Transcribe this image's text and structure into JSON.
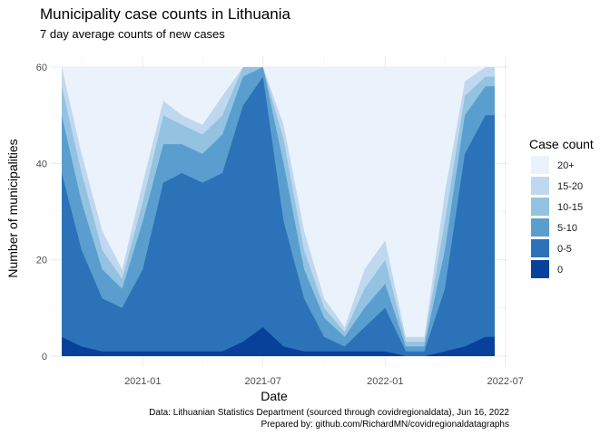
{
  "chart_data": {
    "type": "area",
    "title": "Municipality case counts in Lithuania",
    "subtitle": "7 day average counts of new cases",
    "xlabel": "Date",
    "ylabel": "Number of municipalities",
    "ylim": [
      0,
      62
    ],
    "y_ticks": [
      0,
      20,
      40,
      60
    ],
    "x_range": [
      "2020-09-01",
      "2022-06-15"
    ],
    "x_ticks": [
      {
        "date": "2021-01-01",
        "label": "2021-01"
      },
      {
        "date": "2021-07-01",
        "label": "2021-07"
      },
      {
        "date": "2022-01-01",
        "label": "2022-01"
      },
      {
        "date": "2022-07-01",
        "label": "2022-07"
      }
    ],
    "grid": true,
    "stacked": true,
    "legend_title": "Case count",
    "legend_position": "right",
    "categories": [
      "0",
      "0-5",
      "5-10",
      "10-15",
      "15-20",
      "20+"
    ],
    "legend_order": [
      "20+",
      "15-20",
      "10-15",
      "5-10",
      "0-5",
      "0"
    ],
    "colors": {
      "0": "#08419a",
      "0-5": "#2b72b8",
      "5-10": "#5a9ecf",
      "10-15": "#93c3e0",
      "15-20": "#c0d8ef",
      "20+": "#eaf2fc"
    },
    "series_cumulative": [
      {
        "date": "2020-09-01",
        "values": [
          4,
          38,
          50,
          56,
          60,
          60
        ]
      },
      {
        "date": "2020-10-01",
        "values": [
          2,
          22,
          32,
          38,
          42,
          60
        ]
      },
      {
        "date": "2020-11-01",
        "values": [
          1,
          12,
          18,
          22,
          26,
          60
        ]
      },
      {
        "date": "2020-12-01",
        "values": [
          1,
          10,
          14,
          16,
          18,
          60
        ]
      },
      {
        "date": "2021-01-01",
        "values": [
          1,
          18,
          28,
          32,
          36,
          60
        ]
      },
      {
        "date": "2021-02-01",
        "values": [
          1,
          36,
          44,
          50,
          53,
          60
        ]
      },
      {
        "date": "2021-03-01",
        "values": [
          1,
          38,
          44,
          48,
          50,
          60
        ]
      },
      {
        "date": "2021-04-01",
        "values": [
          1,
          36,
          42,
          46,
          48,
          60
        ]
      },
      {
        "date": "2021-05-01",
        "values": [
          1,
          38,
          46,
          50,
          54,
          60
        ]
      },
      {
        "date": "2021-06-01",
        "values": [
          3,
          52,
          58,
          60,
          60,
          60
        ]
      },
      {
        "date": "2021-07-01",
        "values": [
          6,
          58,
          60,
          60,
          60,
          60
        ]
      },
      {
        "date": "2021-08-01",
        "values": [
          2,
          28,
          40,
          45,
          48,
          60
        ]
      },
      {
        "date": "2021-09-01",
        "values": [
          1,
          12,
          18,
          22,
          26,
          60
        ]
      },
      {
        "date": "2021-10-01",
        "values": [
          1,
          4,
          8,
          10,
          12,
          60
        ]
      },
      {
        "date": "2021-11-01",
        "values": [
          1,
          2,
          4,
          5,
          6,
          60
        ]
      },
      {
        "date": "2021-12-01",
        "values": [
          1,
          6,
          10,
          14,
          18,
          60
        ]
      },
      {
        "date": "2022-01-01",
        "values": [
          1,
          10,
          15,
          20,
          24,
          60
        ]
      },
      {
        "date": "2022-02-01",
        "values": [
          0,
          1,
          2,
          3,
          4,
          60
        ]
      },
      {
        "date": "2022-03-01",
        "values": [
          0,
          1,
          2,
          3,
          4,
          60
        ]
      },
      {
        "date": "2022-04-01",
        "values": [
          1,
          14,
          22,
          28,
          34,
          60
        ]
      },
      {
        "date": "2022-05-01",
        "values": [
          2,
          42,
          50,
          54,
          57,
          60
        ]
      },
      {
        "date": "2022-06-01",
        "values": [
          4,
          50,
          56,
          58,
          60,
          60
        ]
      },
      {
        "date": "2022-06-15",
        "values": [
          4,
          50,
          56,
          58,
          60,
          60
        ]
      }
    ],
    "caption_line1": "Data: Lithuanian Statistics Department (sourced through covidregionaldata), Jun 16, 2022",
    "caption_line2": "Prepared by: github.com/RichardMN/covidregionaldatagraphs"
  }
}
